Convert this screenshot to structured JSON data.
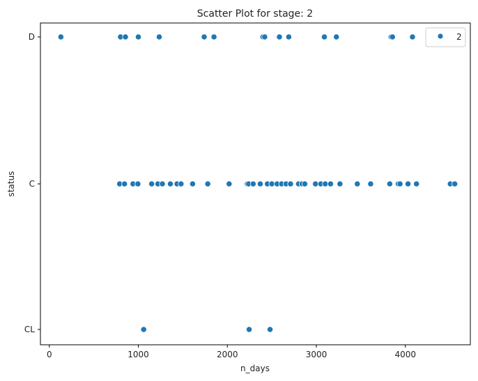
{
  "chart_data": {
    "type": "scatter",
    "title": "Scatter Plot for stage: 2",
    "xlabel": "n_days",
    "ylabel": "status",
    "xlim": [
      -100,
      4730
    ],
    "x_ticks": [
      0,
      1000,
      2000,
      3000,
      4000
    ],
    "y_categories": [
      "CL",
      "C",
      "D"
    ],
    "grid": false,
    "legend": {
      "position": "top-right",
      "entries": [
        "2"
      ]
    },
    "series": [
      {
        "name": "2",
        "color": "#1f77b4",
        "points": [
          {
            "x": 130,
            "y": "D"
          },
          {
            "x": 800,
            "y": "D"
          },
          {
            "x": 855,
            "y": "D"
          },
          {
            "x": 1000,
            "y": "D"
          },
          {
            "x": 1235,
            "y": "D"
          },
          {
            "x": 1740,
            "y": "D"
          },
          {
            "x": 1850,
            "y": "D"
          },
          {
            "x": 2400,
            "y": "D"
          },
          {
            "x": 2420,
            "y": "D"
          },
          {
            "x": 2585,
            "y": "D"
          },
          {
            "x": 2690,
            "y": "D"
          },
          {
            "x": 3090,
            "y": "D"
          },
          {
            "x": 3225,
            "y": "D"
          },
          {
            "x": 3840,
            "y": "D"
          },
          {
            "x": 3855,
            "y": "D"
          },
          {
            "x": 4080,
            "y": "D"
          },
          {
            "x": 790,
            "y": "C"
          },
          {
            "x": 845,
            "y": "C"
          },
          {
            "x": 940,
            "y": "C"
          },
          {
            "x": 995,
            "y": "C"
          },
          {
            "x": 1150,
            "y": "C"
          },
          {
            "x": 1220,
            "y": "C"
          },
          {
            "x": 1270,
            "y": "C"
          },
          {
            "x": 1360,
            "y": "C"
          },
          {
            "x": 1435,
            "y": "C"
          },
          {
            "x": 1480,
            "y": "C"
          },
          {
            "x": 1610,
            "y": "C"
          },
          {
            "x": 1780,
            "y": "C"
          },
          {
            "x": 2020,
            "y": "C"
          },
          {
            "x": 2225,
            "y": "C"
          },
          {
            "x": 2240,
            "y": "C"
          },
          {
            "x": 2290,
            "y": "C"
          },
          {
            "x": 2370,
            "y": "C"
          },
          {
            "x": 2450,
            "y": "C"
          },
          {
            "x": 2500,
            "y": "C"
          },
          {
            "x": 2560,
            "y": "C"
          },
          {
            "x": 2610,
            "y": "C"
          },
          {
            "x": 2660,
            "y": "C"
          },
          {
            "x": 2710,
            "y": "C"
          },
          {
            "x": 2800,
            "y": "C"
          },
          {
            "x": 2840,
            "y": "C"
          },
          {
            "x": 2870,
            "y": "C"
          },
          {
            "x": 2990,
            "y": "C"
          },
          {
            "x": 3050,
            "y": "C"
          },
          {
            "x": 3100,
            "y": "C"
          },
          {
            "x": 3160,
            "y": "C"
          },
          {
            "x": 3265,
            "y": "C"
          },
          {
            "x": 3460,
            "y": "C"
          },
          {
            "x": 3610,
            "y": "C"
          },
          {
            "x": 3825,
            "y": "C"
          },
          {
            "x": 3920,
            "y": "C"
          },
          {
            "x": 3940,
            "y": "C"
          },
          {
            "x": 4030,
            "y": "C"
          },
          {
            "x": 4125,
            "y": "C"
          },
          {
            "x": 4505,
            "y": "C"
          },
          {
            "x": 4555,
            "y": "C"
          },
          {
            "x": 1060,
            "y": "CL"
          },
          {
            "x": 2245,
            "y": "CL"
          },
          {
            "x": 2480,
            "y": "CL"
          }
        ]
      }
    ]
  }
}
